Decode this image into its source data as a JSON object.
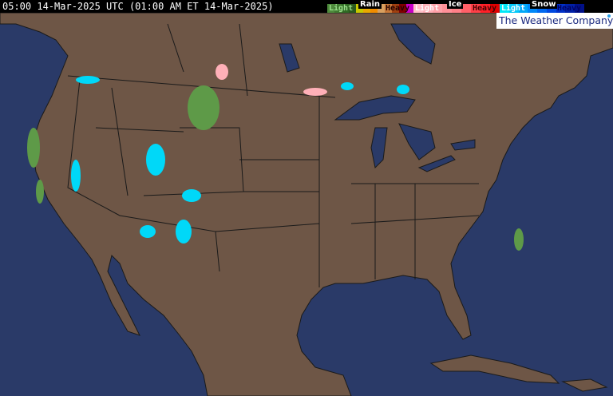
{
  "header": {
    "timestamp": "05:00 14-Mar-2025 UTC  (01:00 AM ET 14-Mar-2025)"
  },
  "legend": {
    "rain": {
      "title": "Rain",
      "light": "Light",
      "heavy": "Heavy",
      "colors": [
        "#4e8a3c",
        "#3f7a30",
        "#2f6a24",
        "#2a5a1e",
        "#c8c800",
        "#e8a800",
        "#f08c00",
        "#d8a060",
        "#c87838",
        "#a04010",
        "#800000",
        "#c800c8"
      ]
    },
    "ice": {
      "title": "Ice",
      "light": "Light",
      "heavy": "Heavy",
      "colors": [
        "#ffc0c8",
        "#ffb0b8",
        "#ffa0a8",
        "#ff9098",
        "#ff8088",
        "#ff6068",
        "#ff4048",
        "#ff2028",
        "#e00000"
      ]
    },
    "snow": {
      "title": "Snow",
      "light": "Light",
      "heavy": "Heavy",
      "colors": [
        "#00e8f8",
        "#00c8f8",
        "#00a8f8",
        "#0088f8",
        "#0068f0",
        "#0048e0",
        "#0030c8",
        "#0020a8",
        "#001088"
      ]
    }
  },
  "logo": {
    "text": "The Weather Company"
  },
  "map": {
    "land_color": "#6e5646",
    "water_color": "#2a3a68",
    "border_color": "#1a1a1a"
  }
}
